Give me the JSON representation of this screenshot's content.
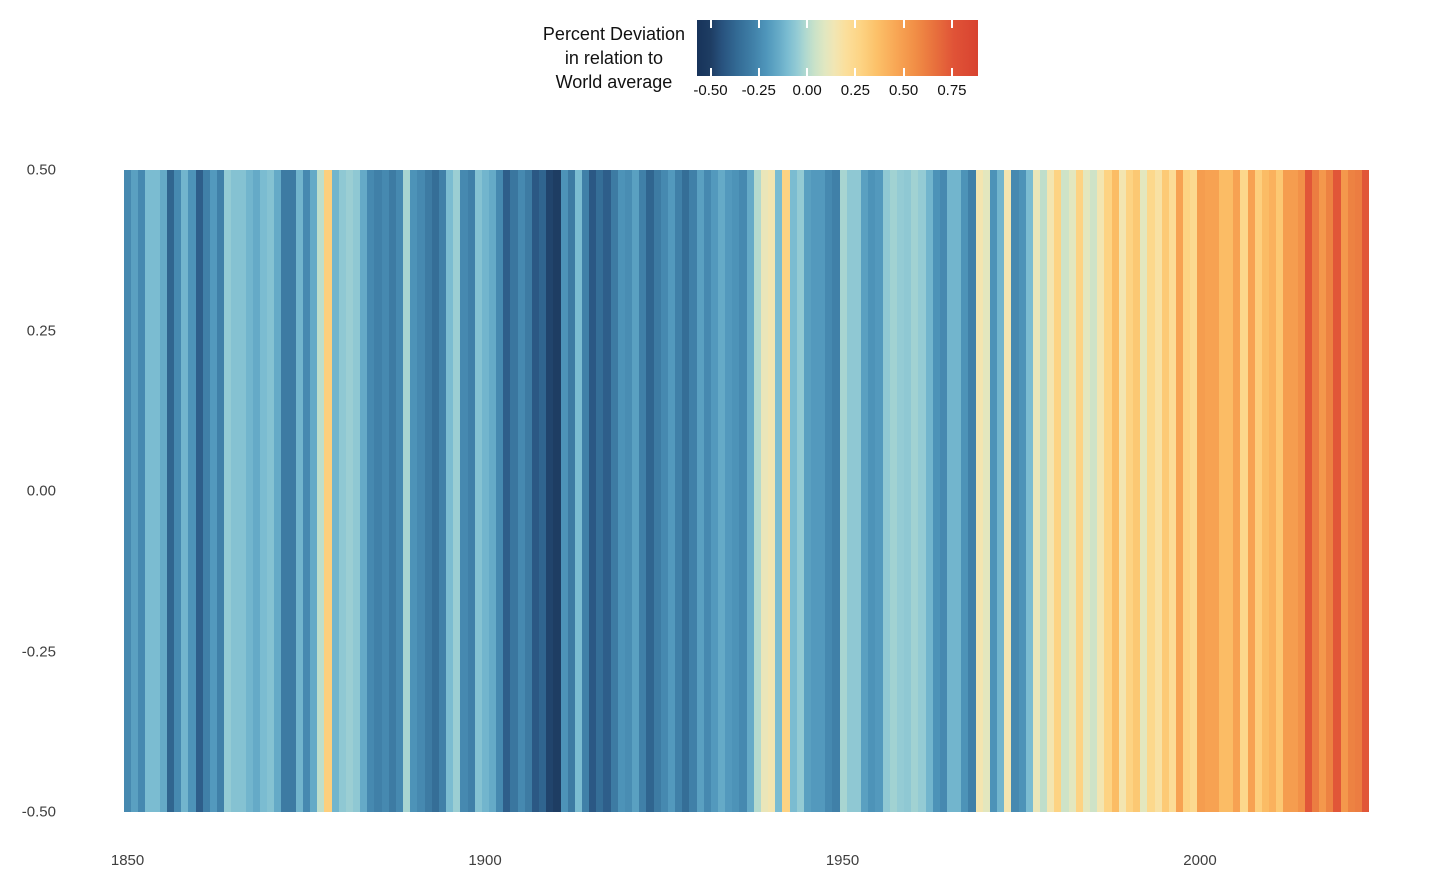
{
  "legend": {
    "title_lines": [
      "Percent Deviation",
      "in relation to",
      "World average"
    ],
    "ticks": [
      {
        "label": "-0.50",
        "value": -0.5
      },
      {
        "label": "-0.25",
        "value": -0.25
      },
      {
        "label": "0.00",
        "value": 0.0
      },
      {
        "label": "0.25",
        "value": 0.25
      },
      {
        "label": "0.50",
        "value": 0.5
      },
      {
        "label": "0.75",
        "value": 0.75
      }
    ],
    "bar_range": [
      -0.57,
      0.885
    ]
  },
  "axes": {
    "y_ticks": [
      {
        "label": "0.50",
        "value": 0.5
      },
      {
        "label": "0.25",
        "value": 0.25
      },
      {
        "label": "0.00",
        "value": 0.0
      },
      {
        "label": "-0.25",
        "value": -0.25
      },
      {
        "label": "-0.50",
        "value": -0.5
      }
    ],
    "x_ticks": [
      {
        "label": "1850",
        "year": 1850
      },
      {
        "label": "1900",
        "year": 1900
      },
      {
        "label": "1950",
        "year": 1950
      },
      {
        "label": "2000",
        "year": 2000
      }
    ],
    "y_range": [
      -0.5,
      0.5
    ]
  },
  "colors": {
    "background": "#ffffff",
    "axis_text": "#3f3f3f",
    "legend_text": "#111111",
    "palette_stops": [
      {
        "v": -0.57,
        "c": "#17335a"
      },
      {
        "v": -0.5,
        "c": "#1e3d63"
      },
      {
        "v": -0.44,
        "c": "#28527e"
      },
      {
        "v": -0.36,
        "c": "#336b95"
      },
      {
        "v": -0.28,
        "c": "#4080a8"
      },
      {
        "v": -0.21,
        "c": "#4f96bb"
      },
      {
        "v": -0.15,
        "c": "#65aac7"
      },
      {
        "v": -0.1,
        "c": "#7bbcd1"
      },
      {
        "v": -0.05,
        "c": "#94cbd4"
      },
      {
        "v": -0.01,
        "c": "#aed8d0"
      },
      {
        "v": 0.04,
        "c": "#cae2c8"
      },
      {
        "v": 0.09,
        "c": "#e0e7c1"
      },
      {
        "v": 0.14,
        "c": "#f1e6b4"
      },
      {
        "v": 0.2,
        "c": "#fbdf9c"
      },
      {
        "v": 0.28,
        "c": "#fdd383"
      },
      {
        "v": 0.36,
        "c": "#fcc169"
      },
      {
        "v": 0.46,
        "c": "#f8a755"
      },
      {
        "v": 0.56,
        "c": "#f18e46"
      },
      {
        "v": 0.66,
        "c": "#e8713d"
      },
      {
        "v": 0.76,
        "c": "#e05337"
      },
      {
        "v": 0.885,
        "c": "#d84330"
      }
    ]
  },
  "chart_data": {
    "type": "heatmap",
    "subtype": "warming-stripes",
    "title": "",
    "legend_title": "Percent Deviation in relation to World average",
    "colormap": "RdYlBu reversed",
    "legend_position": "top-center",
    "grid": false,
    "xlabel": "",
    "ylabel": "",
    "xlim": [
      1850,
      2023
    ],
    "ylim": [
      -0.5,
      0.5
    ],
    "colorbar_ticks": [
      -0.5,
      -0.25,
      0.0,
      0.25,
      0.5,
      0.75
    ],
    "x_start": 1850,
    "x_end": 2023,
    "x_step": 1,
    "values": [
      -0.25,
      -0.18,
      -0.25,
      -0.1,
      -0.1,
      -0.15,
      -0.38,
      -0.25,
      -0.12,
      -0.22,
      -0.4,
      -0.28,
      -0.2,
      -0.28,
      -0.05,
      -0.08,
      -0.08,
      -0.12,
      -0.15,
      -0.1,
      -0.08,
      -0.15,
      -0.3,
      -0.3,
      -0.12,
      -0.25,
      -0.15,
      0.02,
      0.3,
      -0.12,
      -0.06,
      -0.04,
      -0.06,
      -0.15,
      -0.25,
      -0.28,
      -0.25,
      -0.3,
      -0.25,
      -0.02,
      -0.22,
      -0.25,
      -0.3,
      -0.35,
      -0.28,
      -0.1,
      -0.04,
      -0.25,
      -0.28,
      -0.08,
      -0.12,
      -0.15,
      -0.25,
      -0.4,
      -0.32,
      -0.25,
      -0.3,
      -0.42,
      -0.38,
      -0.48,
      -0.5,
      -0.22,
      -0.3,
      -0.1,
      -0.28,
      -0.42,
      -0.35,
      -0.4,
      -0.3,
      -0.22,
      -0.24,
      -0.18,
      -0.28,
      -0.38,
      -0.3,
      -0.25,
      -0.2,
      -0.28,
      -0.35,
      -0.28,
      -0.18,
      -0.25,
      -0.2,
      -0.15,
      -0.2,
      -0.22,
      -0.25,
      -0.15,
      0.0,
      0.12,
      0.15,
      -0.1,
      0.28,
      -0.1,
      -0.05,
      -0.18,
      -0.2,
      -0.2,
      -0.25,
      -0.28,
      -0.02,
      -0.06,
      -0.06,
      -0.18,
      -0.22,
      -0.2,
      -0.06,
      -0.03,
      -0.05,
      -0.06,
      -0.03,
      -0.05,
      -0.12,
      -0.22,
      -0.25,
      -0.12,
      -0.12,
      -0.22,
      -0.28,
      0.15,
      0.1,
      -0.22,
      -0.12,
      0.15,
      -0.25,
      -0.22,
      -0.1,
      0.12,
      0.02,
      0.15,
      0.28,
      0.05,
      0.1,
      0.28,
      0.1,
      0.05,
      0.15,
      0.28,
      0.38,
      0.15,
      0.28,
      0.33,
      0.1,
      0.25,
      0.18,
      0.32,
      0.22,
      0.48,
      0.28,
      0.24,
      0.5,
      0.48,
      0.48,
      0.38,
      0.38,
      0.48,
      0.25,
      0.48,
      0.3,
      0.38,
      0.42,
      0.33,
      0.5,
      0.5,
      0.55,
      0.75,
      0.62,
      0.52,
      0.6,
      0.75,
      0.52,
      0.6,
      0.62,
      0.75
    ]
  }
}
